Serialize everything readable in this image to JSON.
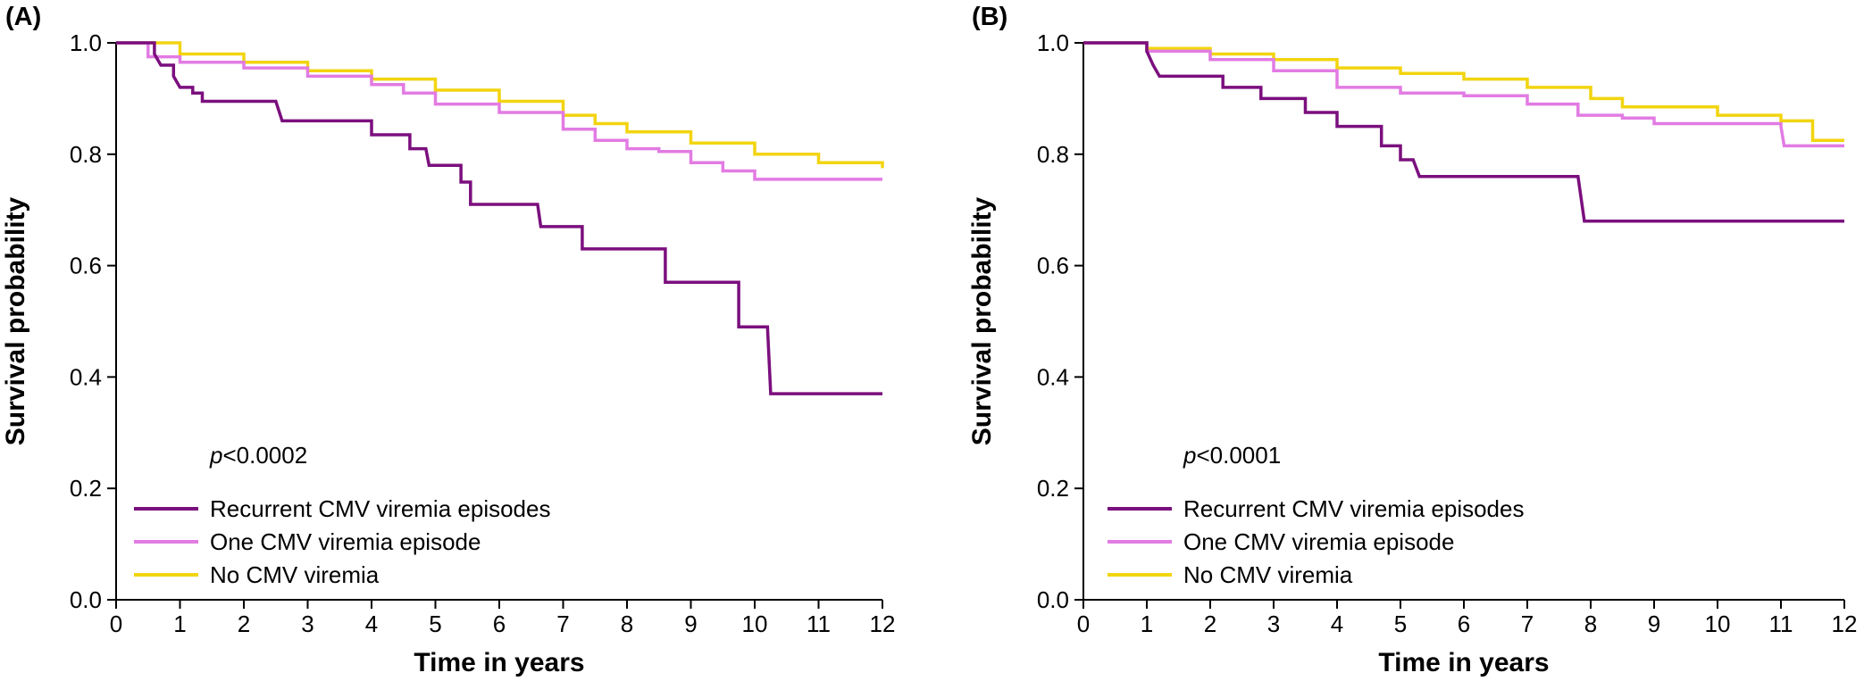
{
  "chart_data": [
    {
      "panel_label": "(A)",
      "type": "line",
      "xlabel": "Time in years",
      "ylabel": "Survival probability",
      "xlim": [
        0,
        12
      ],
      "ylim": [
        0,
        1
      ],
      "xticks": [
        "0",
        "1",
        "2",
        "3",
        "4",
        "5",
        "6",
        "7",
        "8",
        "9",
        "10",
        "11",
        "12"
      ],
      "yticks": [
        "0.0",
        "0.2",
        "0.4",
        "0.6",
        "0.8",
        "1.0"
      ],
      "pvalue_prefix": "p",
      "pvalue_text": "<0.0002",
      "series": [
        {
          "name": "Recurrent CMV viremia episodes",
          "color": "#7b0f7e",
          "points": [
            [
              0,
              1.0
            ],
            [
              0.6,
              0.98
            ],
            [
              0.7,
              0.96
            ],
            [
              0.9,
              0.94
            ],
            [
              1.0,
              0.92
            ],
            [
              1.2,
              0.91
            ],
            [
              1.35,
              0.895
            ],
            [
              2.5,
              0.895
            ],
            [
              2.6,
              0.86
            ],
            [
              3.6,
              0.86
            ],
            [
              4.0,
              0.835
            ],
            [
              4.3,
              0.835
            ],
            [
              4.6,
              0.81
            ],
            [
              4.85,
              0.81
            ],
            [
              4.9,
              0.78
            ],
            [
              5.2,
              0.78
            ],
            [
              5.4,
              0.75
            ],
            [
              5.55,
              0.71
            ],
            [
              6.6,
              0.71
            ],
            [
              6.65,
              0.67
            ],
            [
              7.3,
              0.63
            ],
            [
              7.7,
              0.63
            ],
            [
              8.6,
              0.57
            ],
            [
              9.6,
              0.57
            ],
            [
              9.75,
              0.49
            ],
            [
              10.2,
              0.49
            ],
            [
              10.25,
              0.37
            ],
            [
              12,
              0.37
            ]
          ]
        },
        {
          "name": "One CMV viremia episode",
          "color": "#e27be3",
          "points": [
            [
              0,
              1.0
            ],
            [
              0.5,
              0.975
            ],
            [
              1,
              0.965
            ],
            [
              2,
              0.955
            ],
            [
              3,
              0.94
            ],
            [
              4,
              0.925
            ],
            [
              4.5,
              0.91
            ],
            [
              5,
              0.89
            ],
            [
              6,
              0.875
            ],
            [
              7,
              0.845
            ],
            [
              7.5,
              0.825
            ],
            [
              8,
              0.81
            ],
            [
              8.5,
              0.805
            ],
            [
              9,
              0.785
            ],
            [
              9.5,
              0.77
            ],
            [
              10,
              0.755
            ],
            [
              11,
              0.755
            ],
            [
              12,
              0.755
            ]
          ]
        },
        {
          "name": "No CMV viremia",
          "color": "#f2d40f",
          "points": [
            [
              0,
              1.0
            ],
            [
              1,
              0.98
            ],
            [
              2,
              0.965
            ],
            [
              3,
              0.95
            ],
            [
              4,
              0.935
            ],
            [
              5,
              0.915
            ],
            [
              6,
              0.895
            ],
            [
              7,
              0.87
            ],
            [
              7.5,
              0.855
            ],
            [
              8,
              0.84
            ],
            [
              9,
              0.82
            ],
            [
              10,
              0.8
            ],
            [
              11,
              0.785
            ],
            [
              12,
              0.775
            ]
          ]
        }
      ]
    },
    {
      "panel_label": "(B)",
      "type": "line",
      "xlabel": "Time in years",
      "ylabel": "Survival probability",
      "xlim": [
        0,
        12
      ],
      "ylim": [
        0,
        1
      ],
      "xticks": [
        "0",
        "1",
        "2",
        "3",
        "4",
        "5",
        "6",
        "7",
        "8",
        "9",
        "10",
        "11",
        "12"
      ],
      "yticks": [
        "0.0",
        "0.2",
        "0.4",
        "0.6",
        "0.8",
        "1.0"
      ],
      "pvalue_prefix": "p",
      "pvalue_text": "<0.0001",
      "series": [
        {
          "name": "Recurrent CMV viremia episodes",
          "color": "#7b0f7e",
          "points": [
            [
              0,
              1.0
            ],
            [
              0.8,
              1.0
            ],
            [
              1.0,
              0.985
            ],
            [
              1.1,
              0.96
            ],
            [
              1.2,
              0.94
            ],
            [
              2.0,
              0.94
            ],
            [
              2.2,
              0.92
            ],
            [
              2.5,
              0.92
            ],
            [
              2.8,
              0.9
            ],
            [
              3.3,
              0.9
            ],
            [
              3.5,
              0.875
            ],
            [
              3.8,
              0.875
            ],
            [
              4.0,
              0.85
            ],
            [
              4.4,
              0.85
            ],
            [
              4.7,
              0.815
            ],
            [
              4.8,
              0.815
            ],
            [
              5.0,
              0.79
            ],
            [
              5.2,
              0.79
            ],
            [
              5.3,
              0.76
            ],
            [
              7.8,
              0.76
            ],
            [
              7.9,
              0.68
            ],
            [
              12,
              0.68
            ]
          ]
        },
        {
          "name": "One CMV viremia episode",
          "color": "#e27be3",
          "points": [
            [
              0,
              1.0
            ],
            [
              1,
              0.985
            ],
            [
              2,
              0.97
            ],
            [
              3,
              0.95
            ],
            [
              4,
              0.92
            ],
            [
              5,
              0.91
            ],
            [
              6,
              0.905
            ],
            [
              7,
              0.89
            ],
            [
              7.8,
              0.87
            ],
            [
              8.5,
              0.865
            ],
            [
              9,
              0.855
            ],
            [
              10,
              0.855
            ],
            [
              11,
              0.85
            ],
            [
              11.05,
              0.815
            ],
            [
              12,
              0.815
            ]
          ]
        },
        {
          "name": "No CMV viremia",
          "color": "#f2d40f",
          "points": [
            [
              0,
              1.0
            ],
            [
              1,
              0.99
            ],
            [
              2,
              0.98
            ],
            [
              3,
              0.97
            ],
            [
              4,
              0.955
            ],
            [
              5,
              0.945
            ],
            [
              6,
              0.935
            ],
            [
              7,
              0.92
            ],
            [
              8,
              0.9
            ],
            [
              8.5,
              0.885
            ],
            [
              9,
              0.885
            ],
            [
              10,
              0.87
            ],
            [
              11,
              0.86
            ],
            [
              11.5,
              0.825
            ],
            [
              12,
              0.825
            ]
          ]
        }
      ]
    }
  ]
}
